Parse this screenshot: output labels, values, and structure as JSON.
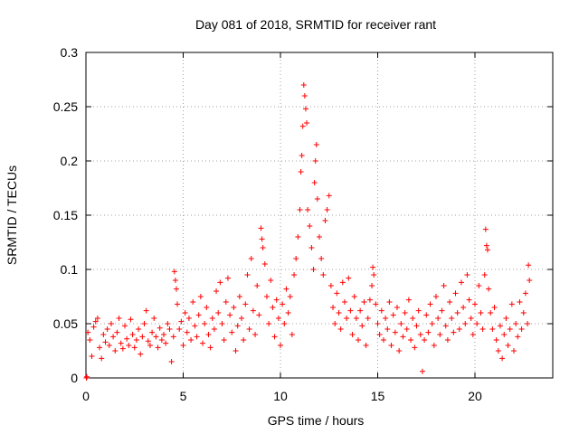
{
  "chart_data": {
    "type": "scatter",
    "title": "Day 081 of 2018, SRMTID for receiver rant",
    "xlabel": "GPS time / hours",
    "ylabel": "SRMTID / TECUs",
    "xlim": [
      0,
      24
    ],
    "ylim": [
      0,
      0.3
    ],
    "xticks": [
      0,
      5,
      10,
      15,
      20
    ],
    "xtick_labels": [
      "0",
      "5",
      "10",
      "15",
      "20"
    ],
    "yticks": [
      0,
      0.05,
      0.1,
      0.15,
      0.2,
      0.25,
      0.3
    ],
    "ytick_labels": [
      "0",
      "0.05",
      "0.1",
      "0.15",
      "0.2",
      "0.25",
      "0.3"
    ],
    "grid": true,
    "marker": "+",
    "color": "#ff0000",
    "series": [
      {
        "name": "SRMTID",
        "points": [
          [
            0.02,
            0.0
          ],
          [
            0.05,
            0.001
          ],
          [
            0.1,
            0.042
          ],
          [
            0.2,
            0.035
          ],
          [
            0.3,
            0.02
          ],
          [
            0.4,
            0.047
          ],
          [
            0.5,
            0.052
          ],
          [
            0.6,
            0.055
          ],
          [
            0.7,
            0.028
          ],
          [
            0.8,
            0.018
          ],
          [
            0.9,
            0.04
          ],
          [
            1.0,
            0.033
          ],
          [
            1.1,
            0.045
          ],
          [
            1.2,
            0.03
          ],
          [
            1.3,
            0.05
          ],
          [
            1.4,
            0.038
          ],
          [
            1.5,
            0.025
          ],
          [
            1.6,
            0.042
          ],
          [
            1.7,
            0.055
          ],
          [
            1.8,
            0.032
          ],
          [
            1.9,
            0.027
          ],
          [
            2.0,
            0.048
          ],
          [
            2.1,
            0.036
          ],
          [
            2.2,
            0.03
          ],
          [
            2.3,
            0.054
          ],
          [
            2.4,
            0.04
          ],
          [
            2.5,
            0.028
          ],
          [
            2.6,
            0.035
          ],
          [
            2.7,
            0.045
          ],
          [
            2.8,
            0.022
          ],
          [
            2.9,
            0.038
          ],
          [
            3.0,
            0.05
          ],
          [
            3.1,
            0.062
          ],
          [
            3.2,
            0.034
          ],
          [
            3.3,
            0.03
          ],
          [
            3.4,
            0.042
          ],
          [
            3.5,
            0.055
          ],
          [
            3.6,
            0.038
          ],
          [
            3.7,
            0.028
          ],
          [
            3.8,
            0.046
          ],
          [
            3.9,
            0.035
          ],
          [
            4.0,
            0.04
          ],
          [
            4.1,
            0.032
          ],
          [
            4.2,
            0.05
          ],
          [
            4.3,
            0.045
          ],
          [
            4.4,
            0.015
          ],
          [
            4.5,
            0.038
          ],
          [
            4.55,
            0.098
          ],
          [
            4.6,
            0.09
          ],
          [
            4.65,
            0.082
          ],
          [
            4.7,
            0.068
          ],
          [
            4.8,
            0.045
          ],
          [
            4.9,
            0.052
          ],
          [
            5.0,
            0.03
          ],
          [
            5.1,
            0.06
          ],
          [
            5.2,
            0.042
          ],
          [
            5.3,
            0.055
          ],
          [
            5.4,
            0.035
          ],
          [
            5.5,
            0.07
          ],
          [
            5.6,
            0.048
          ],
          [
            5.7,
            0.038
          ],
          [
            5.8,
            0.058
          ],
          [
            5.9,
            0.075
          ],
          [
            6.0,
            0.032
          ],
          [
            6.1,
            0.05
          ],
          [
            6.2,
            0.065
          ],
          [
            6.3,
            0.04
          ],
          [
            6.4,
            0.028
          ],
          [
            6.5,
            0.055
          ],
          [
            6.6,
            0.045
          ],
          [
            6.7,
            0.08
          ],
          [
            6.8,
            0.06
          ],
          [
            6.9,
            0.088
          ],
          [
            7.0,
            0.05
          ],
          [
            7.1,
            0.035
          ],
          [
            7.2,
            0.07
          ],
          [
            7.3,
            0.092
          ],
          [
            7.4,
            0.058
          ],
          [
            7.5,
            0.042
          ],
          [
            7.6,
            0.065
          ],
          [
            7.7,
            0.025
          ],
          [
            7.8,
            0.048
          ],
          [
            7.9,
            0.075
          ],
          [
            8.0,
            0.055
          ],
          [
            8.1,
            0.035
          ],
          [
            8.2,
            0.068
          ],
          [
            8.3,
            0.095
          ],
          [
            8.4,
            0.045
          ],
          [
            8.5,
            0.11
          ],
          [
            8.6,
            0.062
          ],
          [
            8.7,
            0.04
          ],
          [
            8.8,
            0.085
          ],
          [
            8.9,
            0.058
          ],
          [
            9.0,
            0.138
          ],
          [
            9.05,
            0.128
          ],
          [
            9.1,
            0.12
          ],
          [
            9.2,
            0.105
          ],
          [
            9.3,
            0.075
          ],
          [
            9.4,
            0.05
          ],
          [
            9.5,
            0.09
          ],
          [
            9.6,
            0.065
          ],
          [
            9.7,
            0.038
          ],
          [
            9.8,
            0.072
          ],
          [
            9.9,
            0.055
          ],
          [
            10.0,
            0.03
          ],
          [
            10.1,
            0.068
          ],
          [
            10.2,
            0.05
          ],
          [
            10.3,
            0.082
          ],
          [
            10.4,
            0.06
          ],
          [
            10.5,
            0.075
          ],
          [
            10.6,
            0.04
          ],
          [
            10.7,
            0.095
          ],
          [
            10.8,
            0.11
          ],
          [
            10.9,
            0.13
          ],
          [
            11.0,
            0.155
          ],
          [
            11.05,
            0.19
          ],
          [
            11.1,
            0.205
          ],
          [
            11.15,
            0.232
          ],
          [
            11.2,
            0.27
          ],
          [
            11.25,
            0.26
          ],
          [
            11.3,
            0.248
          ],
          [
            11.35,
            0.235
          ],
          [
            11.4,
            0.155
          ],
          [
            11.5,
            0.14
          ],
          [
            11.6,
            0.12
          ],
          [
            11.7,
            0.1
          ],
          [
            11.75,
            0.18
          ],
          [
            11.8,
            0.2
          ],
          [
            11.85,
            0.215
          ],
          [
            11.9,
            0.165
          ],
          [
            12.0,
            0.13
          ],
          [
            12.1,
            0.11
          ],
          [
            12.2,
            0.095
          ],
          [
            12.3,
            0.145
          ],
          [
            12.4,
            0.155
          ],
          [
            12.5,
            0.168
          ],
          [
            12.6,
            0.085
          ],
          [
            12.7,
            0.065
          ],
          [
            12.8,
            0.05
          ],
          [
            12.9,
            0.078
          ],
          [
            13.0,
            0.06
          ],
          [
            13.1,
            0.045
          ],
          [
            13.2,
            0.088
          ],
          [
            13.3,
            0.07
          ],
          [
            13.4,
            0.055
          ],
          [
            13.5,
            0.092
          ],
          [
            13.6,
            0.062
          ],
          [
            13.7,
            0.04
          ],
          [
            13.8,
            0.075
          ],
          [
            13.9,
            0.055
          ],
          [
            14.0,
            0.035
          ],
          [
            14.1,
            0.062
          ],
          [
            14.2,
            0.048
          ],
          [
            14.3,
            0.07
          ],
          [
            14.4,
            0.03
          ],
          [
            14.5,
            0.055
          ],
          [
            14.6,
            0.072
          ],
          [
            14.7,
            0.085
          ],
          [
            14.75,
            0.102
          ],
          [
            14.8,
            0.095
          ],
          [
            14.9,
            0.068
          ],
          [
            15.0,
            0.05
          ],
          [
            15.1,
            0.04
          ],
          [
            15.2,
            0.062
          ],
          [
            15.3,
            0.035
          ],
          [
            15.4,
            0.055
          ],
          [
            15.5,
            0.045
          ],
          [
            15.6,
            0.07
          ],
          [
            15.7,
            0.03
          ],
          [
            15.8,
            0.058
          ],
          [
            15.9,
            0.042
          ],
          [
            16.0,
            0.065
          ],
          [
            16.1,
            0.025
          ],
          [
            16.2,
            0.05
          ],
          [
            16.3,
            0.038
          ],
          [
            16.4,
            0.06
          ],
          [
            16.5,
            0.045
          ],
          [
            16.6,
            0.072
          ],
          [
            16.7,
            0.035
          ],
          [
            16.8,
            0.055
          ],
          [
            16.9,
            0.028
          ],
          [
            17.0,
            0.048
          ],
          [
            17.1,
            0.062
          ],
          [
            17.2,
            0.04
          ],
          [
            17.3,
            0.006
          ],
          [
            17.4,
            0.035
          ],
          [
            17.5,
            0.058
          ],
          [
            17.6,
            0.042
          ],
          [
            17.7,
            0.068
          ],
          [
            17.8,
            0.05
          ],
          [
            17.9,
            0.03
          ],
          [
            18.0,
            0.075
          ],
          [
            18.1,
            0.055
          ],
          [
            18.2,
            0.04
          ],
          [
            18.3,
            0.062
          ],
          [
            18.4,
            0.085
          ],
          [
            18.5,
            0.048
          ],
          [
            18.6,
            0.035
          ],
          [
            18.7,
            0.07
          ],
          [
            18.8,
            0.055
          ],
          [
            18.9,
            0.042
          ],
          [
            19.0,
            0.078
          ],
          [
            19.1,
            0.06
          ],
          [
            19.2,
            0.045
          ],
          [
            19.3,
            0.088
          ],
          [
            19.4,
            0.065
          ],
          [
            19.5,
            0.05
          ],
          [
            19.6,
            0.095
          ],
          [
            19.7,
            0.072
          ],
          [
            19.8,
            0.055
          ],
          [
            19.9,
            0.04
          ],
          [
            20.0,
            0.068
          ],
          [
            20.1,
            0.05
          ],
          [
            20.2,
            0.085
          ],
          [
            20.3,
            0.06
          ],
          [
            20.4,
            0.045
          ],
          [
            20.5,
            0.095
          ],
          [
            20.55,
            0.137
          ],
          [
            20.6,
            0.122
          ],
          [
            20.65,
            0.118
          ],
          [
            20.7,
            0.082
          ],
          [
            20.8,
            0.06
          ],
          [
            20.9,
            0.045
          ],
          [
            21.0,
            0.065
          ],
          [
            21.1,
            0.035
          ],
          [
            21.2,
            0.025
          ],
          [
            21.3,
            0.048
          ],
          [
            21.4,
            0.018
          ],
          [
            21.5,
            0.04
          ],
          [
            21.6,
            0.055
          ],
          [
            21.7,
            0.03
          ],
          [
            21.8,
            0.045
          ],
          [
            21.9,
            0.068
          ],
          [
            22.0,
            0.025
          ],
          [
            22.1,
            0.05
          ],
          [
            22.2,
            0.038
          ],
          [
            22.3,
            0.07
          ],
          [
            22.4,
            0.045
          ],
          [
            22.5,
            0.06
          ],
          [
            22.6,
            0.078
          ],
          [
            22.7,
            0.05
          ],
          [
            22.75,
            0.104
          ],
          [
            22.8,
            0.09
          ]
        ]
      }
    ]
  }
}
